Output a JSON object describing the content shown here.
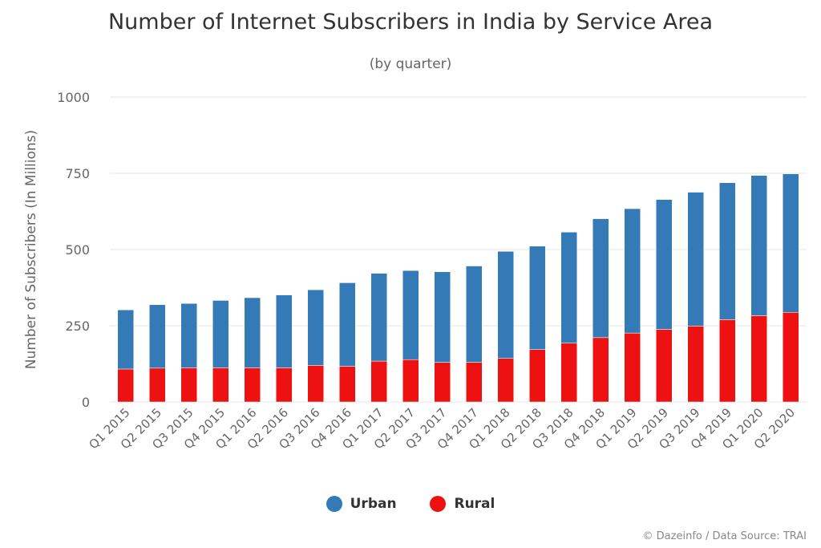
{
  "colors": {
    "urban": "#337ab7",
    "rural": "#ee1111",
    "grid": "#e6e6e6",
    "text": "#666666"
  },
  "credit": "© Dazeinfo / Data Source: TRAI",
  "chart_data": {
    "type": "bar",
    "stacked": true,
    "title": "Number of Internet Subscribers in India by Service Area",
    "subtitle": "(by quarter)",
    "xlabel": "",
    "ylabel": "Number of Subscribers (In Millions)",
    "ylim": [
      0,
      1000
    ],
    "yticks": [
      0,
      250,
      500,
      750,
      1000
    ],
    "grid": true,
    "legend_position": "bottom",
    "categories": [
      "Q1 2015",
      "Q2 2015",
      "Q3 2015",
      "Q4 2015",
      "Q1 2016",
      "Q2 2016",
      "Q3 2016",
      "Q4 2016",
      "Q1 2017",
      "Q2 2017",
      "Q3 2017",
      "Q4 2017",
      "Q1 2018",
      "Q2 2018",
      "Q3 2018",
      "Q4 2018",
      "Q1 2019",
      "Q2 2019",
      "Q3 2019",
      "Q4 2019",
      "Q1 2020",
      "Q2 2020"
    ],
    "series": [
      {
        "name": "Rural",
        "color": "#ee1111",
        "values": [
          108,
          111,
          112,
          112,
          112,
          112,
          120,
          117,
          134,
          139,
          130,
          130,
          143,
          172,
          193,
          211,
          226,
          238,
          249,
          270,
          283,
          294
        ]
      },
      {
        "name": "Urban",
        "color": "#337ab7",
        "values": [
          194,
          208,
          211,
          221,
          230,
          239,
          248,
          274,
          288,
          292,
          297,
          316,
          351,
          339,
          364,
          390,
          408,
          426,
          439,
          449,
          460,
          454
        ]
      }
    ]
  }
}
